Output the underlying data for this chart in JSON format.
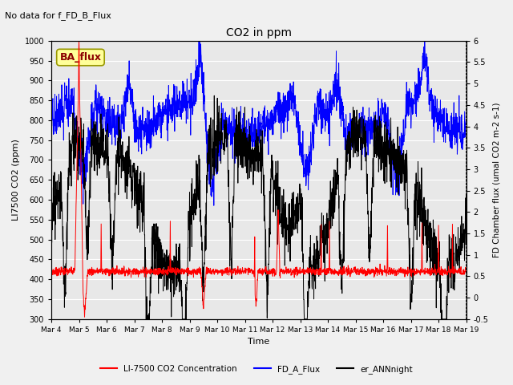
{
  "title": "CO2 in ppm",
  "top_left_text": "No data for f_FD_B_Flux",
  "box_label": "BA_flux",
  "xlabel": "Time",
  "ylabel_left": "LI7500 CO2 (ppm)",
  "ylabel_right": "FD Chamber flux (umal CO2 m-2 s-1)",
  "ylim_left": [
    300,
    1000
  ],
  "ylim_right": [
    -0.5,
    6.0
  ],
  "yticks_left": [
    300,
    350,
    400,
    450,
    500,
    550,
    600,
    650,
    700,
    750,
    800,
    850,
    900,
    950,
    1000
  ],
  "yticks_right": [
    -0.5,
    0.0,
    0.5,
    1.0,
    1.5,
    2.0,
    2.5,
    3.0,
    3.5,
    4.0,
    4.5,
    5.0,
    5.5,
    6.0
  ],
  "xtick_labels": [
    "Mar 4",
    "Mar 5",
    "Mar 6",
    "Mar 7",
    "Mar 8",
    "Mar 9",
    "Mar 10",
    "Mar 11",
    "Mar 12",
    "Mar 13",
    "Mar 14",
    "Mar 15",
    "Mar 16",
    "Mar 17",
    "Mar 18",
    "Mar 19"
  ],
  "n_points": 2000,
  "red_color": "#FF0000",
  "blue_color": "#0000FF",
  "black_color": "#000000",
  "fig_bg_color": "#F0F0F0",
  "plot_bg_color": "#E8E8E8",
  "legend_labels": [
    "LI-7500 CO2 Concentration",
    "FD_A_Flux",
    "er_ANNnight"
  ],
  "grid_color": "#FFFFFF",
  "box_face": "#FFFF99",
  "box_edge": "#999900",
  "box_text_color": "#8B0000"
}
